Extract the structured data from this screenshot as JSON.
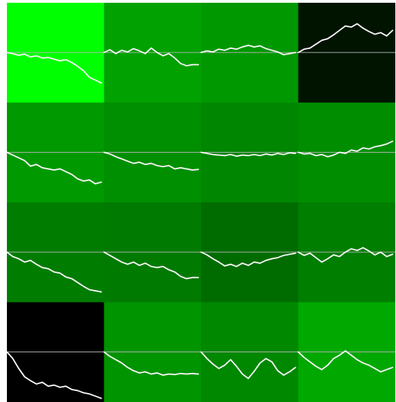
{
  "chart_data": {
    "type": "heatmap",
    "rows": 4,
    "cols": 4,
    "colors": {
      "line": "#f4f4f4",
      "baseline": "#b4b4b4",
      "background": "#ffffff"
    },
    "cells": [
      {
        "row": 0,
        "col": 0,
        "color": "#00ff00",
        "series": [
          0.0,
          -0.02,
          -0.05,
          -0.03,
          -0.08,
          -0.06,
          -0.1,
          -0.09,
          -0.12,
          -0.15,
          -0.13,
          -0.18,
          -0.25,
          -0.33,
          -0.45,
          -0.5,
          -0.55
        ]
      },
      {
        "row": 0,
        "col": 1,
        "color": "#00a100",
        "series": [
          0.0,
          0.05,
          -0.02,
          0.04,
          0.01,
          0.07,
          0.03,
          -0.02,
          0.08,
          0.0,
          -0.06,
          -0.02,
          -0.1,
          -0.2,
          -0.24,
          -0.22,
          -0.22
        ]
      },
      {
        "row": 0,
        "col": 2,
        "color": "#009800",
        "series": [
          0.0,
          0.03,
          0.01,
          0.06,
          0.04,
          0.08,
          0.06,
          0.1,
          0.13,
          0.1,
          0.12,
          0.07,
          0.04,
          0.01,
          -0.04,
          -0.02,
          0.0
        ]
      },
      {
        "row": 0,
        "col": 3,
        "color": "#001400",
        "series": [
          0.0,
          0.06,
          0.08,
          0.15,
          0.22,
          0.25,
          0.32,
          0.4,
          0.48,
          0.46,
          0.52,
          0.44,
          0.38,
          0.33,
          0.36,
          0.3,
          0.4
        ]
      },
      {
        "row": 1,
        "col": 0,
        "color": "#009900",
        "series": [
          0.0,
          -0.05,
          -0.1,
          -0.15,
          -0.25,
          -0.22,
          -0.28,
          -0.3,
          -0.32,
          -0.3,
          -0.35,
          -0.4,
          -0.48,
          -0.52,
          -0.5,
          -0.57,
          -0.54
        ]
      },
      {
        "row": 1,
        "col": 1,
        "color": "#008f00",
        "series": [
          0.0,
          -0.03,
          -0.08,
          -0.12,
          -0.16,
          -0.2,
          -0.18,
          -0.22,
          -0.2,
          -0.24,
          -0.26,
          -0.24,
          -0.3,
          -0.28,
          -0.3,
          -0.32,
          -0.31
        ]
      },
      {
        "row": 1,
        "col": 2,
        "color": "#008600",
        "series": [
          0.0,
          -0.02,
          -0.04,
          -0.05,
          -0.06,
          -0.04,
          -0.07,
          -0.05,
          -0.06,
          -0.04,
          -0.06,
          -0.03,
          -0.05,
          -0.02,
          -0.04,
          -0.01,
          -0.02
        ]
      },
      {
        "row": 1,
        "col": 3,
        "color": "#008e00",
        "series": [
          0.0,
          -0.03,
          -0.02,
          -0.06,
          -0.04,
          -0.08,
          -0.05,
          0.0,
          -0.02,
          0.04,
          0.02,
          0.08,
          0.06,
          0.1,
          0.12,
          0.15,
          0.2
        ]
      },
      {
        "row": 2,
        "col": 0,
        "color": "#007c00",
        "series": [
          0.0,
          -0.08,
          -0.12,
          -0.18,
          -0.15,
          -0.22,
          -0.28,
          -0.3,
          -0.36,
          -0.38,
          -0.45,
          -0.48,
          -0.55,
          -0.62,
          -0.68,
          -0.7,
          -0.72
        ]
      },
      {
        "row": 2,
        "col": 1,
        "color": "#007a00",
        "series": [
          0.0,
          -0.06,
          -0.12,
          -0.18,
          -0.22,
          -0.18,
          -0.24,
          -0.2,
          -0.26,
          -0.28,
          -0.26,
          -0.32,
          -0.36,
          -0.44,
          -0.48,
          -0.46,
          -0.46
        ]
      },
      {
        "row": 2,
        "col": 2,
        "color": "#006c00",
        "series": [
          0.0,
          -0.05,
          -0.12,
          -0.18,
          -0.25,
          -0.22,
          -0.26,
          -0.2,
          -0.24,
          -0.18,
          -0.2,
          -0.15,
          -0.12,
          -0.1,
          -0.06,
          -0.04,
          -0.02
        ]
      },
      {
        "row": 2,
        "col": 3,
        "color": "#007e00",
        "series": [
          0.0,
          -0.06,
          -0.02,
          -0.1,
          -0.18,
          -0.12,
          -0.05,
          -0.08,
          0.0,
          0.06,
          0.03,
          0.08,
          0.02,
          -0.05,
          0.0,
          -0.08,
          -0.04
        ]
      },
      {
        "row": 3,
        "col": 0,
        "color": "#000000",
        "series": [
          0.0,
          -0.12,
          -0.3,
          -0.45,
          -0.52,
          -0.58,
          -0.55,
          -0.62,
          -0.6,
          -0.64,
          -0.62,
          -0.68,
          -0.7,
          -0.74,
          -0.76,
          -0.8,
          -0.84
        ]
      },
      {
        "row": 3,
        "col": 1,
        "color": "#009400",
        "series": [
          0.0,
          -0.08,
          -0.14,
          -0.2,
          -0.28,
          -0.34,
          -0.38,
          -0.36,
          -0.4,
          -0.38,
          -0.42,
          -0.4,
          -0.41,
          -0.39,
          -0.4,
          -0.39,
          -0.4
        ]
      },
      {
        "row": 3,
        "col": 2,
        "color": "#008800",
        "series": [
          0.0,
          -0.12,
          -0.22,
          -0.3,
          -0.24,
          -0.14,
          -0.26,
          -0.4,
          -0.48,
          -0.35,
          -0.2,
          -0.12,
          -0.18,
          -0.34,
          -0.42,
          -0.36,
          -0.28
        ]
      },
      {
        "row": 3,
        "col": 3,
        "color": "#00a800",
        "series": [
          0.0,
          -0.1,
          -0.18,
          -0.26,
          -0.32,
          -0.24,
          -0.12,
          -0.06,
          0.02,
          -0.06,
          -0.14,
          -0.2,
          -0.24,
          -0.3,
          -0.36,
          -0.32,
          -0.28
        ]
      }
    ]
  }
}
